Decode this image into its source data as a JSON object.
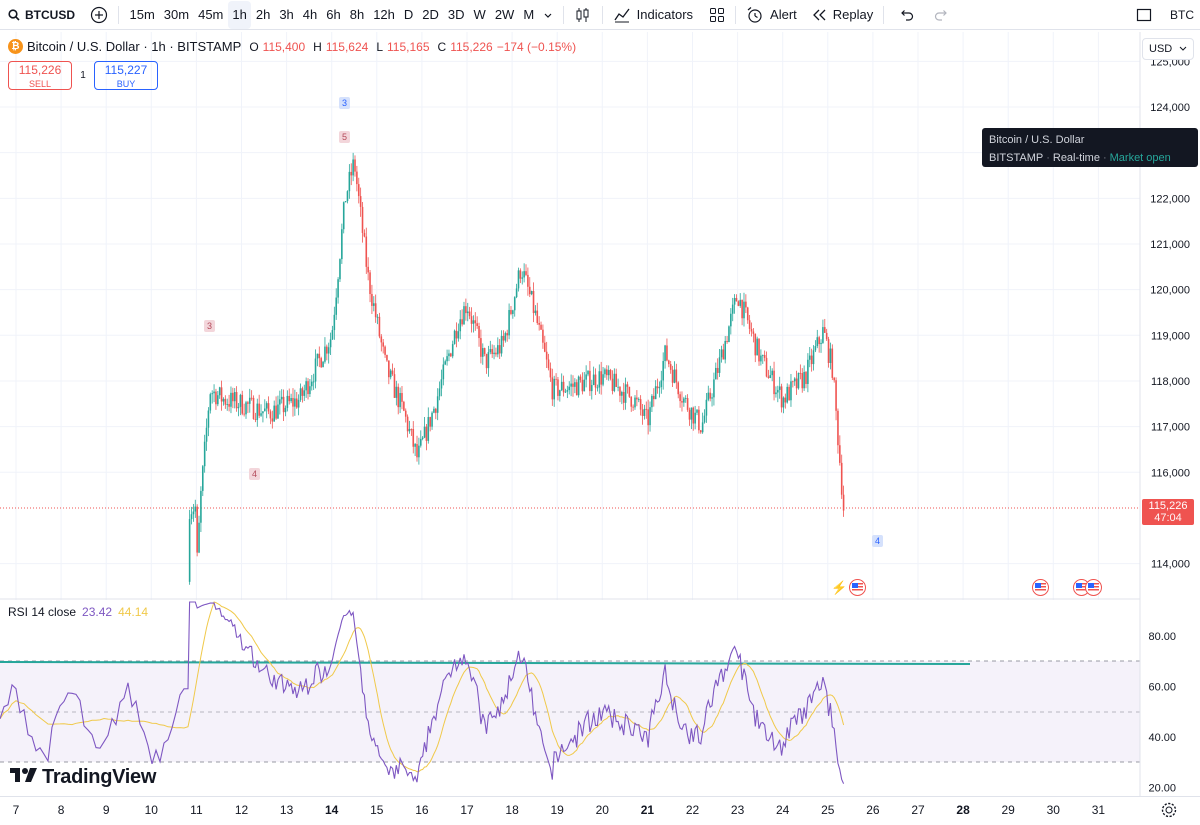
{
  "toolbar": {
    "symbol": "BTCUSD",
    "intervals": [
      "15m",
      "30m",
      "45m",
      "1h",
      "2h",
      "3h",
      "4h",
      "6h",
      "8h",
      "12h",
      "D",
      "2D",
      "3D",
      "W",
      "2W",
      "M"
    ],
    "active_interval": "1h",
    "indicators_label": "Indicators",
    "alert_label": "Alert",
    "replay_label": "Replay",
    "compare_label": "BTC"
  },
  "legend": {
    "title": "Bitcoin / U.S. Dollar · 1h · BITSTAMP",
    "o_label": "O",
    "o_value": "115,400",
    "h_label": "H",
    "h_value": "115,624",
    "l_label": "L",
    "l_value": "115,165",
    "c_label": "C",
    "c_value": "115,226",
    "change": "−174 (−0.15%)"
  },
  "trade": {
    "sell_price": "115,226",
    "sell_label": "SELL",
    "spread": "1",
    "buy_price": "115,227",
    "buy_label": "BUY"
  },
  "currency": "USD",
  "tooltip": {
    "line1": "Bitcoin / U.S. Dollar",
    "exchange": "BITSTAMP",
    "feed": "Real-time",
    "status": "Market open"
  },
  "last_price": {
    "price": "115,226",
    "countdown": "47:04"
  },
  "price_axis": [
    "125,000",
    "124,000",
    "123,000",
    "122,000",
    "121,000",
    "120,000",
    "119,000",
    "118,000",
    "117,000",
    "116,000",
    "114,000"
  ],
  "markers": [
    {
      "label": "3",
      "color": "blue"
    },
    {
      "label": "5",
      "color": "red"
    },
    {
      "label": "3",
      "color": "red"
    },
    {
      "label": "4",
      "color": "red"
    },
    {
      "label": "4",
      "color": "blue"
    }
  ],
  "rsi": {
    "label": "RSI 14 close",
    "value": "23.42",
    "ma_value": "44.14",
    "axis": [
      "80.00",
      "60.00",
      "40.00",
      "20.00"
    ]
  },
  "watermark": "TradingView",
  "x_axis": [
    {
      "label": "7",
      "bold": false
    },
    {
      "label": "8",
      "bold": false
    },
    {
      "label": "9",
      "bold": false
    },
    {
      "label": "10",
      "bold": false
    },
    {
      "label": "11",
      "bold": false
    },
    {
      "label": "12",
      "bold": false
    },
    {
      "label": "13",
      "bold": false
    },
    {
      "label": "14",
      "bold": true
    },
    {
      "label": "15",
      "bold": false
    },
    {
      "label": "16",
      "bold": false
    },
    {
      "label": "17",
      "bold": false
    },
    {
      "label": "18",
      "bold": false
    },
    {
      "label": "19",
      "bold": false
    },
    {
      "label": "20",
      "bold": false
    },
    {
      "label": "21",
      "bold": true
    },
    {
      "label": "22",
      "bold": false
    },
    {
      "label": "23",
      "bold": false
    },
    {
      "label": "24",
      "bold": false
    },
    {
      "label": "25",
      "bold": false
    },
    {
      "label": "26",
      "bold": false
    },
    {
      "label": "27",
      "bold": false
    },
    {
      "label": "28",
      "bold": true
    },
    {
      "label": "29",
      "bold": false
    },
    {
      "label": "30",
      "bold": false
    },
    {
      "label": "31",
      "bold": false
    }
  ],
  "colors": {
    "up": "#26a69a",
    "down": "#ef5350",
    "rsi": "#7e57c2",
    "rsi_ma": "#f0c94a",
    "accent": "#2962ff"
  },
  "chart_data": {
    "type": "candlestick",
    "series_price_anchors": [
      {
        "day": 11.0,
        "close": 113800
      },
      {
        "day": 11.1,
        "close": 115500
      },
      {
        "day": 11.3,
        "close": 117800
      },
      {
        "day": 11.6,
        "close": 117600
      },
      {
        "day": 12.0,
        "close": 117500
      },
      {
        "day": 12.6,
        "close": 117300
      },
      {
        "day": 13.3,
        "close": 117600
      },
      {
        "day": 13.8,
        "close": 118600
      },
      {
        "day": 14.0,
        "close": 119000
      },
      {
        "day": 14.3,
        "close": 122000
      },
      {
        "day": 14.5,
        "close": 122800
      },
      {
        "day": 14.8,
        "close": 120300
      },
      {
        "day": 15.2,
        "close": 118300
      },
      {
        "day": 15.6,
        "close": 117300
      },
      {
        "day": 15.9,
        "close": 116300
      },
      {
        "day": 16.3,
        "close": 117500
      },
      {
        "day": 16.8,
        "close": 119300
      },
      {
        "day": 17.0,
        "close": 119700
      },
      {
        "day": 17.4,
        "close": 118400
      },
      {
        "day": 17.8,
        "close": 118800
      },
      {
        "day": 18.2,
        "close": 120500
      },
      {
        "day": 18.5,
        "close": 119500
      },
      {
        "day": 18.9,
        "close": 117800
      },
      {
        "day": 19.4,
        "close": 117900
      },
      {
        "day": 20.0,
        "close": 118100
      },
      {
        "day": 20.7,
        "close": 117600
      },
      {
        "day": 21.0,
        "close": 117100
      },
      {
        "day": 21.4,
        "close": 118600
      },
      {
        "day": 21.8,
        "close": 117600
      },
      {
        "day": 22.2,
        "close": 117000
      },
      {
        "day": 22.6,
        "close": 118400
      },
      {
        "day": 23.0,
        "close": 119900
      },
      {
        "day": 23.5,
        "close": 118500
      },
      {
        "day": 24.0,
        "close": 117600
      },
      {
        "day": 24.5,
        "close": 118100
      },
      {
        "day": 24.9,
        "close": 119100
      },
      {
        "day": 25.1,
        "close": 118300
      },
      {
        "day": 25.35,
        "close": 115226
      }
    ],
    "rsi_levels": [
      70,
      50,
      30
    ]
  }
}
